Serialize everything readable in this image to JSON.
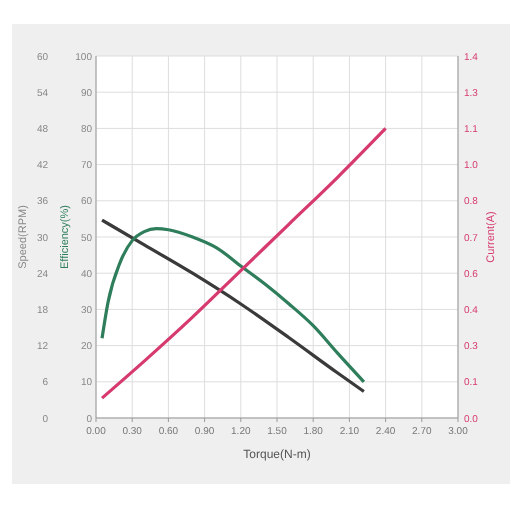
{
  "chart_data": {
    "type": "line",
    "xlabel": "Torque(N-m)",
    "ylabel": "Speed(RPM)",
    "y2label": "Efficiency(%)",
    "y3label": "Current(A)",
    "xlim": [
      0,
      3
    ],
    "xticks": [
      {
        "value": 0,
        "label": "0.00"
      },
      {
        "value": 0.3,
        "label": "0.30"
      },
      {
        "value": 0.6,
        "label": "0.60"
      },
      {
        "value": 0.9,
        "label": "0.90"
      },
      {
        "value": 1.2,
        "label": "1.20"
      },
      {
        "value": 1.5,
        "label": "1.50"
      },
      {
        "value": 1.8,
        "label": "1.80"
      },
      {
        "value": 2.1,
        "label": "2.10"
      },
      {
        "value": 2.4,
        "label": "2.40"
      },
      {
        "value": 2.7,
        "label": "2.70"
      },
      {
        "value": 3,
        "label": "3.00"
      }
    ],
    "ylim": [
      0,
      60
    ],
    "yticks": [
      0,
      6,
      12,
      18,
      24,
      30,
      36,
      42,
      48,
      54,
      60
    ],
    "y2lim": [
      0,
      100
    ],
    "y2ticks": [
      0,
      10,
      20,
      30,
      40,
      50,
      60,
      70,
      80,
      90,
      100
    ],
    "y3lim": [
      0,
      1.4
    ],
    "y3ticks": [
      {
        "value": 0,
        "label": "0.0"
      },
      {
        "value": 0.14,
        "label": "0.1"
      },
      {
        "value": 0.28,
        "label": "0.3"
      },
      {
        "value": 0.42,
        "label": "0.4"
      },
      {
        "value": 0.56,
        "label": "0.6"
      },
      {
        "value": 0.7,
        "label": "0.7"
      },
      {
        "value": 0.84,
        "label": "0.8"
      },
      {
        "value": 0.98,
        "label": "1.0"
      },
      {
        "value": 1.12,
        "label": "1.1"
      },
      {
        "value": 1.26,
        "label": "1.3"
      },
      {
        "value": 1.4,
        "label": "1.4"
      }
    ],
    "grid": true,
    "marker": "none",
    "line_style": "solid",
    "series": [
      {
        "color": "#3a3a3a",
        "axis": "y",
        "x": [
          0.05,
          0.4,
          0.8,
          1.2,
          1.6,
          2.0,
          2.22
        ],
        "values": [
          32.8,
          28.7,
          24.0,
          18.9,
          13.3,
          7.5,
          4.4
        ]
      },
      {
        "color": "#2e7d5b",
        "axis": "y2",
        "x": [
          0.05,
          0.1,
          0.2,
          0.3,
          0.4,
          0.5,
          0.6,
          0.8,
          1.0,
          1.2,
          1.4,
          1.6,
          1.8,
          2.0,
          2.22
        ],
        "values": [
          22,
          32,
          43,
          49,
          51.5,
          52.3,
          52,
          50,
          47,
          42,
          37,
          31.5,
          25.5,
          18,
          10
        ]
      },
      {
        "color": "#d63a6e",
        "axis": "y3",
        "x": [
          0.05,
          0.4,
          0.8,
          1.2,
          1.6,
          2.0,
          2.4
        ],
        "values": [
          0.077,
          0.22,
          0.39,
          0.57,
          0.75,
          0.93,
          1.12
        ]
      }
    ]
  }
}
